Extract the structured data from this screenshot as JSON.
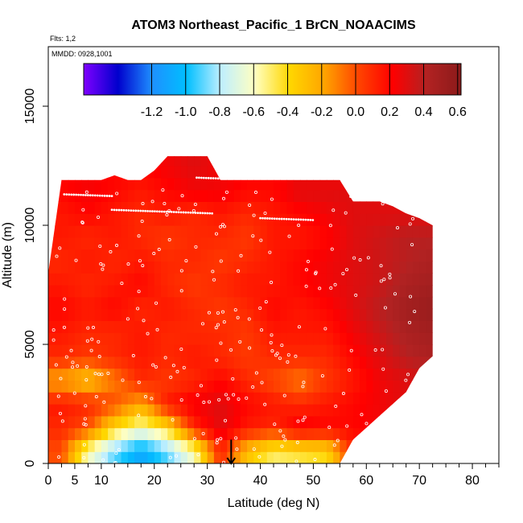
{
  "chart_data": {
    "type": "heatmap",
    "title": "ATOM3 Northeast_Pacific_1 BrCN_NOAACIMS",
    "subtitle_flights": "Flts: 1,2",
    "subtitle_dates": "MMDD: 0928,1001",
    "xlabel": "Latitude (deg N)",
    "ylabel": "Altitude (m)",
    "xlim": [
      0,
      85
    ],
    "ylim": [
      0,
      17500
    ],
    "x_ticks": [
      0,
      5,
      10,
      20,
      30,
      40,
      50,
      60,
      70,
      80
    ],
    "x_minor_ticks": [
      2.5,
      7.5,
      12.5,
      15,
      17.5,
      22.5,
      25,
      27.5,
      32.5,
      35,
      37.5,
      42.5,
      45,
      47.5,
      52.5,
      55,
      57.5,
      62.5,
      65,
      67.5,
      72.5,
      75,
      77.5,
      82.5,
      85
    ],
    "y_ticks": [
      0,
      5000,
      10000,
      15000
    ],
    "colorbar": {
      "min": -1.6,
      "max": 0.62,
      "tick_values": [
        -1.2,
        -1.0,
        -0.8,
        -0.6,
        -0.4,
        -0.2,
        0.0,
        0.2,
        0.4,
        0.6
      ],
      "tick_labels": [
        "-1.2",
        "-1.0",
        "-0.8",
        "-0.6",
        "-0.4",
        "-0.2",
        "0.0",
        "0.2",
        "0.4",
        "0.6"
      ],
      "colors": [
        "#7f00ff",
        "#0000cd",
        "#1e90ff",
        "#00bfff",
        "#bfefff",
        "#ffffc0",
        "#ffd700",
        "#ffa500",
        "#ff4500",
        "#ff0000",
        "#b22222",
        "#8b1a1a"
      ]
    },
    "arrow_marker": {
      "x": 34.5,
      "y_from": 1000,
      "y_to": 0
    },
    "curtain_extent": {
      "x": [
        0,
        2.5,
        5,
        7.5,
        10,
        12.5,
        15,
        17.5,
        20,
        22.5,
        25,
        27.5,
        30,
        32.5,
        35,
        37.5,
        40,
        42.5,
        45,
        47.5,
        50,
        52.5,
        55,
        57.5,
        60,
        62.5,
        65,
        67.5,
        70,
        72.5
      ],
      "top": [
        8000,
        11900,
        11900,
        11900,
        11900,
        12100,
        11900,
        11900,
        12300,
        12900,
        12900,
        12900,
        12900,
        11900,
        11900,
        11900,
        11900,
        11900,
        11900,
        11900,
        11900,
        11900,
        11900,
        11000,
        11000,
        11000,
        10800,
        10500,
        10300,
        10000
      ],
      "bottom": [
        0,
        0,
        0,
        0,
        0,
        0,
        0,
        0,
        0,
        0,
        0,
        0,
        0,
        0,
        0,
        0,
        0,
        0,
        0,
        0,
        0,
        0,
        0,
        1000,
        1500,
        2000,
        2500,
        3000,
        4000,
        4500
      ]
    },
    "field": {
      "x_centers": [
        2.5,
        7.5,
        12.5,
        17.5,
        22.5,
        27.5,
        32.5,
        37.5,
        42.5,
        47.5,
        52.5,
        57.5,
        62.5,
        67.5,
        72.5
      ],
      "y_centers": [
        500,
        1500,
        2500,
        3500,
        4500,
        5500,
        6500,
        7500,
        8500,
        9500,
        10500,
        11500,
        12500
      ],
      "values": [
        [
          0.0,
          -0.6,
          -0.9,
          -1.1,
          -0.9,
          -0.6,
          0.1,
          -0.3,
          -0.5,
          -0.45,
          -0.4,
          0.1,
          0.2,
          0.3,
          0.3
        ],
        [
          0.1,
          0.0,
          -0.4,
          -0.6,
          -0.4,
          0.1,
          0.3,
          0.15,
          0.1,
          0.25,
          0.2,
          0.2,
          0.25,
          0.3,
          0.3
        ],
        [
          0.15,
          0.1,
          0.0,
          -0.2,
          0.15,
          0.25,
          0.3,
          0.2,
          0.15,
          0.1,
          0.15,
          0.2,
          0.25,
          0.3,
          0.3
        ],
        [
          -0.2,
          -0.3,
          -0.1,
          0.1,
          0.05,
          0.1,
          0.2,
          0.1,
          0.0,
          -0.1,
          0.05,
          0.15,
          0.25,
          0.3,
          0.35
        ],
        [
          0.1,
          0.05,
          0.1,
          0.15,
          0.1,
          0.15,
          0.1,
          0.05,
          0.1,
          0.1,
          0.1,
          0.2,
          0.3,
          0.4,
          0.45
        ],
        [
          0.15,
          0.1,
          0.1,
          0.15,
          0.1,
          0.1,
          0.1,
          0.05,
          0.15,
          0.15,
          0.15,
          0.25,
          0.35,
          0.45,
          0.5
        ],
        [
          0.2,
          0.15,
          0.2,
          0.1,
          0.15,
          0.1,
          0.05,
          0.1,
          0.2,
          0.15,
          0.2,
          0.3,
          0.4,
          0.5,
          0.55
        ],
        [
          0.15,
          0.1,
          0.15,
          0.2,
          0.1,
          0.05,
          0.1,
          0.15,
          0.15,
          0.2,
          0.25,
          0.3,
          0.35,
          0.45,
          0.5
        ],
        [
          0.1,
          0.15,
          0.1,
          0.15,
          0.1,
          0.1,
          0.05,
          0.1,
          0.15,
          0.2,
          0.25,
          0.3,
          0.35,
          0.4,
          0.45
        ],
        [
          0.15,
          0.1,
          0.15,
          0.1,
          0.05,
          0.1,
          0.1,
          0.05,
          0.15,
          0.15,
          0.2,
          0.3,
          0.35,
          0.4,
          0.4
        ],
        [
          0.15,
          0.2,
          0.15,
          0.1,
          0.15,
          0.1,
          0.15,
          0.1,
          0.15,
          0.2,
          0.25,
          0.3,
          0.3,
          0.3,
          0.3
        ],
        [
          0.2,
          0.25,
          0.2,
          0.15,
          0.2,
          0.25,
          0.25,
          0.2,
          0.2,
          0.3,
          0.3,
          0.3,
          0.3,
          0.3,
          0.3
        ],
        [
          0.2,
          0.2,
          0.2,
          0.2,
          0.25,
          0.3,
          0.25,
          0.2,
          0.2,
          0.2,
          0.2,
          0.2,
          0.2,
          0.2,
          0.2
        ]
      ]
    }
  }
}
